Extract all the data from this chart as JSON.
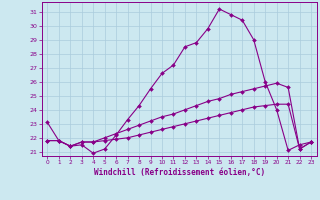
{
  "xlabel": "Windchill (Refroidissement éolien,°C)",
  "background_color": "#cce8f0",
  "line_color": "#880088",
  "grid_color": "#aaccdd",
  "xlim": [
    -0.5,
    23.5
  ],
  "ylim": [
    20.7,
    31.7
  ],
  "xticks": [
    0,
    1,
    2,
    3,
    4,
    5,
    6,
    7,
    8,
    9,
    10,
    11,
    12,
    13,
    14,
    15,
    16,
    17,
    18,
    19,
    20,
    21,
    22,
    23
  ],
  "yticks": [
    21,
    22,
    23,
    24,
    25,
    26,
    27,
    28,
    29,
    30,
    31
  ],
  "line1_x": [
    0,
    1,
    2,
    3,
    4,
    5,
    6,
    7,
    8,
    9,
    10,
    11,
    12,
    13,
    14,
    15,
    16,
    17,
    18,
    19,
    20,
    21,
    22,
    23
  ],
  "line1_y": [
    23.1,
    21.8,
    21.4,
    21.5,
    20.9,
    21.2,
    22.2,
    23.3,
    24.3,
    25.5,
    26.6,
    27.2,
    28.5,
    28.8,
    29.8,
    31.2,
    30.8,
    30.4,
    29.0,
    26.0,
    24.0,
    21.1,
    21.5,
    21.7
  ],
  "line2_x": [
    0,
    1,
    2,
    3,
    4,
    5,
    6,
    7,
    8,
    9,
    10,
    11,
    12,
    13,
    14,
    15,
    16,
    17,
    18,
    19,
    20,
    21,
    22,
    23
  ],
  "line2_y": [
    21.8,
    21.8,
    21.4,
    21.7,
    21.7,
    21.8,
    21.9,
    22.0,
    22.2,
    22.4,
    22.6,
    22.8,
    23.0,
    23.2,
    23.4,
    23.6,
    23.8,
    24.0,
    24.2,
    24.3,
    24.4,
    24.4,
    21.2,
    21.7
  ],
  "line3_x": [
    0,
    1,
    2,
    3,
    4,
    5,
    6,
    7,
    8,
    9,
    10,
    11,
    12,
    13,
    14,
    15,
    16,
    17,
    18,
    19,
    20,
    21,
    22,
    23
  ],
  "line3_y": [
    21.8,
    21.8,
    21.4,
    21.7,
    21.7,
    22.0,
    22.3,
    22.6,
    22.9,
    23.2,
    23.5,
    23.7,
    24.0,
    24.3,
    24.6,
    24.8,
    25.1,
    25.3,
    25.5,
    25.7,
    25.9,
    25.6,
    21.2,
    21.7
  ]
}
